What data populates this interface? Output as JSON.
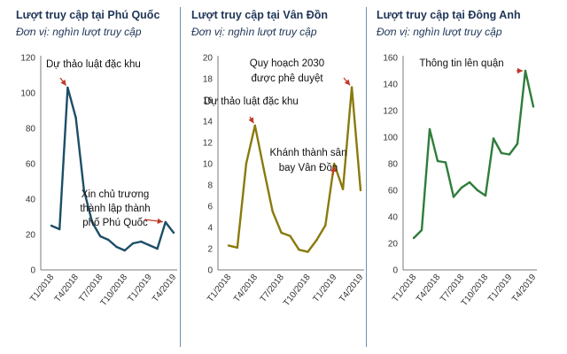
{
  "chart_data": [
    {
      "type": "line",
      "title": "Lượt truy cập tại Phú Quốc",
      "subtitle": "Đơn vị: nghìn lượt truy cập",
      "color": "#1d4e67",
      "ylim": [
        0,
        120
      ],
      "yticks": [
        0,
        20,
        40,
        60,
        80,
        100,
        120
      ],
      "x": [
        "T1/2018",
        "T2/2018",
        "T3/2018",
        "T4/2018",
        "T5/2018",
        "T6/2018",
        "T7/2018",
        "T8/2018",
        "T9/2018",
        "T10/2018",
        "T11/2018",
        "T12/2018",
        "T1/2019",
        "T2/2019",
        "T3/2019",
        "T4/2019"
      ],
      "xticks": [
        "T1/2018",
        "T4/2018",
        "T7/2018",
        "T10/2018",
        "T1/2019",
        "T4/2019"
      ],
      "values": [
        25,
        23,
        103,
        86,
        45,
        27,
        19,
        17,
        13,
        11,
        15,
        16,
        14,
        12,
        27,
        21
      ],
      "annotations": [
        {
          "lines": [
            "Dự thảo luật đặc khu"
          ],
          "point": 2
        },
        {
          "lines": [
            "Xin chủ trương",
            "thành lập thành",
            "phố Phú Quốc"
          ],
          "point": 14
        }
      ],
      "grid": false
    },
    {
      "type": "line",
      "title": "Lượt truy cập tại Vân Đồn",
      "subtitle": "Đơn vị: nghìn lượt truy cập",
      "color": "#8a7a0c",
      "ylim": [
        0,
        20
      ],
      "yticks": [
        0,
        2,
        4,
        6,
        8,
        10,
        12,
        14,
        16,
        18,
        20
      ],
      "x": [
        "T1/2018",
        "T2/2018",
        "T3/2018",
        "T4/2018",
        "T5/2018",
        "T6/2018",
        "T7/2018",
        "T8/2018",
        "T9/2018",
        "T10/2018",
        "T11/2018",
        "T12/2018",
        "T1/2019",
        "T2/2019",
        "T3/2019",
        "T4/2019"
      ],
      "xticks": [
        "T1/2018",
        "T4/2018",
        "T7/2018",
        "T10/2018",
        "T1/2019",
        "T4/2019"
      ],
      "values": [
        2.3,
        2.1,
        10,
        13.6,
        9.5,
        5.5,
        3.5,
        3.2,
        1.9,
        1.7,
        2.8,
        4.2,
        10,
        7.6,
        17.2,
        7.5
      ],
      "annotations": [
        {
          "lines": [
            "Quy hoạch 2030",
            "được phê duyệt"
          ],
          "point": 14
        },
        {
          "lines": [
            "Dự thảo luật đặc khu"
          ],
          "point": 3
        },
        {
          "lines": [
            "Khánh thành sân",
            "bay Vân Đồn"
          ],
          "point": 12
        }
      ],
      "grid": false
    },
    {
      "type": "line",
      "title": "Lượt truy cập tại Đông Anh",
      "subtitle": "Đơn vị: nghìn lượt truy cập",
      "color": "#2e7d3a",
      "ylim": [
        0,
        160
      ],
      "yticks": [
        0,
        20,
        40,
        60,
        80,
        100,
        120,
        140,
        160
      ],
      "x": [
        "T1/2018",
        "T2/2018",
        "T3/2018",
        "T4/2018",
        "T5/2018",
        "T6/2018",
        "T7/2018",
        "T8/2018",
        "T9/2018",
        "T10/2018",
        "T11/2018",
        "T12/2018",
        "T1/2019",
        "T2/2019",
        "T3/2019",
        "T4/2019"
      ],
      "xticks": [
        "T1/2018",
        "T4/2018",
        "T7/2018",
        "T10/2018",
        "T1/2019",
        "T4/2019"
      ],
      "values": [
        24,
        30,
        106,
        82,
        81,
        55,
        62,
        66,
        60,
        56,
        99,
        88,
        87,
        95,
        150,
        123
      ],
      "annotations": [
        {
          "lines": [
            "Thông tin lên quận"
          ],
          "point": 14
        }
      ],
      "grid": false
    }
  ],
  "arrow_color": "#c0392b"
}
